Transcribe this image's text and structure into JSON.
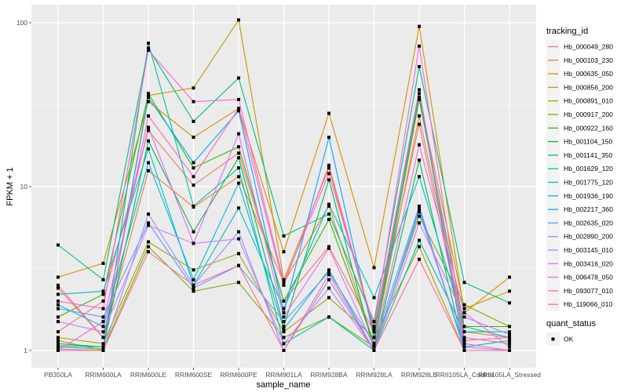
{
  "chart_data": {
    "type": "line",
    "title": "",
    "xlabel": "sample_name",
    "ylabel": "FPKM + 1",
    "yscale": "log10",
    "ylim": [
      0.87,
      120
    ],
    "yticks": [
      1,
      10,
      100
    ],
    "ytick_labels": [
      "1",
      "10",
      "100"
    ],
    "grid": true,
    "legend_placement": "right",
    "categories": [
      "PB350LA",
      "RRIM600LA",
      "RRIM600LE",
      "RRIM600SE",
      "RRIM600PE",
      "RRIM901LA",
      "RRIM928BA",
      "RRIM928LA",
      "RRIM928LE",
      "RRII105LA_Control",
      "RRII105LA_Stressed"
    ],
    "legend": {
      "color_title": "tracking_id",
      "shape_title": "quant_status",
      "shape_entries": [
        "OK"
      ]
    },
    "series": [
      {
        "name": "Hb_000049_280",
        "color": "#F8766D",
        "values": [
          1.3,
          2.0,
          22,
          10.2,
          16,
          2.0,
          4.3,
          1.3,
          24,
          1.2,
          1.1
        ]
      },
      {
        "name": "Hb_000103_230",
        "color": "#EA8331",
        "values": [
          2.4,
          1.2,
          12.5,
          7.5,
          11.5,
          2.6,
          7.6,
          1.1,
          27,
          1.3,
          1.2
        ]
      },
      {
        "name": "Hb_000635_050",
        "color": "#D89000",
        "values": [
          2.8,
          3.4,
          33,
          20,
          30,
          4.0,
          28,
          3.2,
          95,
          1.7,
          2.8
        ]
      },
      {
        "name": "Hb_000856_200",
        "color": "#C09B00",
        "values": [
          1.15,
          1.0,
          36,
          40,
          104,
          2.7,
          13,
          1.3,
          35,
          1.8,
          2.3
        ]
      },
      {
        "name": "Hb_000891_010",
        "color": "#A3A500",
        "values": [
          1.2,
          1.1,
          4.6,
          3.1,
          3.9,
          1.3,
          2.1,
          1.2,
          4.3,
          1.0,
          1.0
        ]
      },
      {
        "name": "Hb_000917_200",
        "color": "#7CAE00",
        "values": [
          1.05,
          1.02,
          4.3,
          2.3,
          2.6,
          1.2,
          1.6,
          1.05,
          6.6,
          1.9,
          1.4
        ]
      },
      {
        "name": "Hb_000922_160",
        "color": "#39B600",
        "values": [
          1.6,
          2.2,
          37,
          13,
          17.5,
          2.0,
          6.3,
          1.1,
          34,
          1.4,
          1.4
        ]
      },
      {
        "name": "Hb_001104_150",
        "color": "#00BB4E",
        "values": [
          1.1,
          1.05,
          19,
          5.3,
          15,
          1.4,
          11,
          1.0,
          14.5,
          1.0,
          1.0
        ]
      },
      {
        "name": "Hb_001141_350",
        "color": "#00BF7D",
        "values": [
          4.4,
          2.7,
          70,
          25,
          46,
          5.0,
          6.8,
          1.5,
          54,
          2.6,
          1.95
        ]
      },
      {
        "name": "Hb_001629_120",
        "color": "#00C1A3",
        "values": [
          1.0,
          1.0,
          75,
          7.6,
          13,
          1.1,
          1.6,
          1.0,
          4.7,
          1.3,
          1.3
        ]
      },
      {
        "name": "Hb_001775_120",
        "color": "#00BFC4",
        "values": [
          2.2,
          2.3,
          17,
          2.5,
          7.4,
          1.8,
          7.8,
          2.1,
          11.5,
          1.4,
          1.2
        ]
      },
      {
        "name": "Hb_001936_190",
        "color": "#00B8E7",
        "values": [
          1.9,
          1.4,
          14,
          2.7,
          10.5,
          1.35,
          3.1,
          1.0,
          7.3,
          1.05,
          1.15
        ]
      },
      {
        "name": "Hb_002217_360",
        "color": "#00A9FF",
        "values": [
          1.07,
          1.05,
          35,
          14,
          29,
          1.7,
          20,
          1.2,
          37,
          1.0,
          1.0
        ]
      },
      {
        "name": "Hb_002635_020",
        "color": "#619CFF",
        "values": [
          1.8,
          1.6,
          6.0,
          2.4,
          3.3,
          1.5,
          3.0,
          1.1,
          7.6,
          1.0,
          1.0
        ]
      },
      {
        "name": "Hb_002890_200",
        "color": "#9590FF",
        "values": [
          1.02,
          1.0,
          6.8,
          2.5,
          5.3,
          1.0,
          2.7,
          1.0,
          7.0,
          1.05,
          1.0
        ]
      },
      {
        "name": "Hb_003145_010",
        "color": "#C77CFF",
        "values": [
          1.5,
          1.3,
          5.8,
          4.5,
          4.8,
          1.1,
          2.4,
          1.0,
          6.0,
          1.6,
          1.25
        ]
      },
      {
        "name": "Hb_003416_020",
        "color": "#E76BF3",
        "values": [
          1.0,
          1.5,
          23,
          4.5,
          21,
          1.6,
          4.2,
          1.05,
          18,
          1.7,
          1.05
        ]
      },
      {
        "name": "Hb_006478_050",
        "color": "#FA62DB",
        "values": [
          2.0,
          1.8,
          68,
          33,
          34,
          2.6,
          12,
          1.4,
          72,
          1.15,
          1.2
        ]
      },
      {
        "name": "Hb_093077_010",
        "color": "#FF62BC",
        "values": [
          2.5,
          1.2,
          27,
          11.5,
          30,
          2.5,
          13.5,
          1.35,
          39,
          1.1,
          1.0
        ]
      },
      {
        "name": "Hb_119066_010",
        "color": "#FF6C91",
        "values": [
          1.0,
          1.0,
          4.0,
          2.5,
          3.3,
          1.0,
          2.9,
          1.0,
          3.6,
          1.0,
          1.0
        ]
      }
    ]
  }
}
